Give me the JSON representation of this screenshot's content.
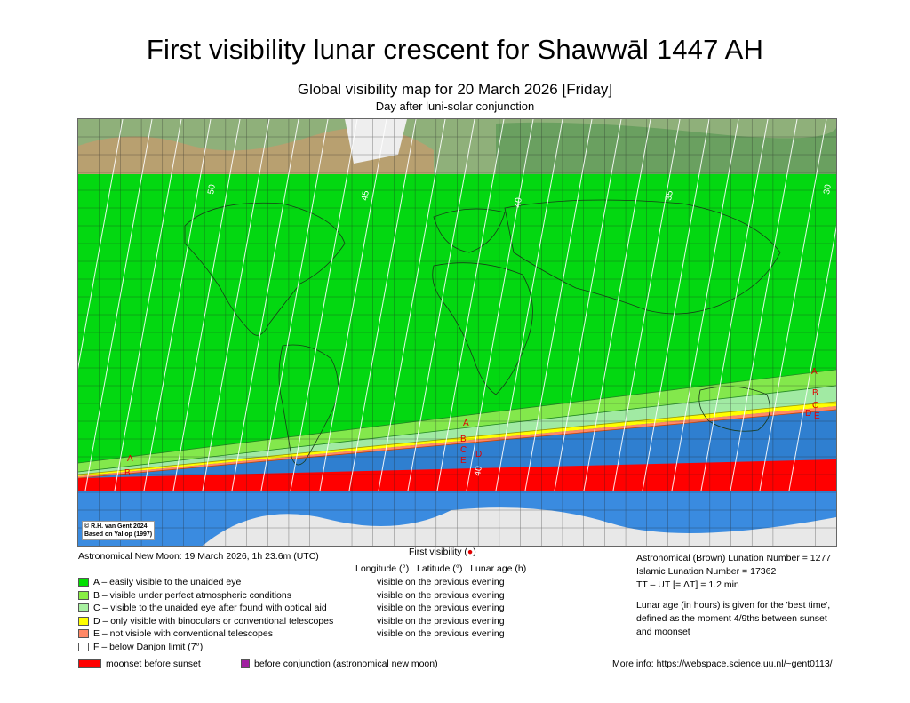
{
  "title": "First visibility lunar crescent for Shawwāl 1447 AH",
  "subtitle": "Global visibility map for 20 March 2026 [Friday]",
  "subtitle2": "Day after luni-solar conjunction",
  "map": {
    "credit_line1": "© R.H. van Gent 2024",
    "credit_line2": "Based on Yallop (1997)",
    "lunar_age_labels": [
      "50",
      "45",
      "40",
      "35",
      "30"
    ],
    "zone_letters": [
      "A",
      "B",
      "C",
      "D",
      "E"
    ],
    "colors": {
      "zone_a": "#00e000",
      "zone_b": "#88ee44",
      "zone_c": "#a8f0a0",
      "zone_d": "#ffff00",
      "zone_e": "#ff8866",
      "moonset": "#ff0000",
      "ocean": "#2f7fd0",
      "polar": "#e8e8e8"
    }
  },
  "info": {
    "new_moon": "Astronomical New Moon: 19 March 2026, 1h 23.6m (UTC)",
    "first_visibility_label": "First visibility (",
    "first_visibility_dot": "●",
    "first_visibility_close": ")",
    "col_headers": "Longitude (°)   Latitude (°)   Lunar age (h)"
  },
  "legend": [
    {
      "label": "A – easily visible to the unaided eye",
      "color": "#00e000",
      "status": "visible on the previous evening"
    },
    {
      "label": "B – visible under perfect atmospheric conditions",
      "color": "#88ee44",
      "status": "visible on the previous evening"
    },
    {
      "label": "C – visible to the unaided eye after found with optical aid",
      "color": "#a8f0a0",
      "status": "visible on the previous evening"
    },
    {
      "label": "D – only visible with binoculars or conventional telescopes",
      "color": "#ffff00",
      "status": "visible on the previous evening"
    },
    {
      "label": "E – not visible with conventional telescopes",
      "color": "#ff8866",
      "status": "visible on the previous evening"
    },
    {
      "label": "F – below Danjon limit (7°)",
      "color": "#ffffff",
      "status": ""
    }
  ],
  "bottom": {
    "moonset": {
      "label": "moonset before sunset",
      "color": "#ff0000"
    },
    "before_conj": {
      "label": "before conjunction (astronomical new moon)",
      "color": "#a020a0"
    },
    "more_info": "More info: https://webspace.science.uu.nl/~gent0113/"
  },
  "right": {
    "brown": "Astronomical (Brown) Lunation Number = 1277",
    "islamic": "Islamic Lunation Number = 17362",
    "tt": "TT – UT [= ΔT] = 1.2 min",
    "note1": "Lunar age (in hours) is given for the 'best time',",
    "note2": "defined as the moment 4/9ths between sunset",
    "note3": "and moonset"
  }
}
